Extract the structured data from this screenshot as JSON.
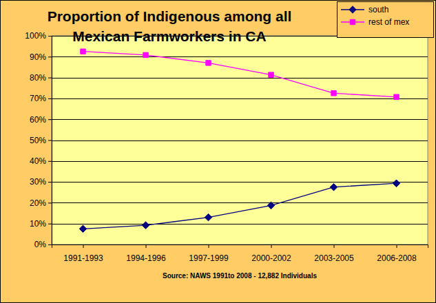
{
  "chart_data": {
    "type": "line",
    "title": "Proportion of Indigenous among all Mexican Farmworkers in CA",
    "xlabel": "Source: NAWS 1991to 2008 - 12,882 Individuals",
    "categories": [
      "1991-1993",
      "1994-1996",
      "1997-1999",
      "2000-2002",
      "2003-2005",
      "2006-2008"
    ],
    "series": [
      {
        "name": "south",
        "color": "#000080",
        "marker": "diamond",
        "values": [
          7.5,
          9.2,
          13,
          18.7,
          27.5,
          29.3
        ]
      },
      {
        "name": "rest of mex",
        "color": "#ff00ff",
        "marker": "square",
        "values": [
          92.5,
          90.8,
          87,
          81.3,
          72.5,
          70.7
        ]
      }
    ],
    "ylim": [
      0,
      100
    ],
    "yticks": [
      {
        "value": 0,
        "label": "0%"
      },
      {
        "value": 10,
        "label": "10%"
      },
      {
        "value": 20,
        "label": "20%"
      },
      {
        "value": 30,
        "label": "30%"
      },
      {
        "value": 40,
        "label": "40%"
      },
      {
        "value": 50,
        "label": "50%"
      },
      {
        "value": 60,
        "label": "60%"
      },
      {
        "value": 70,
        "label": "70%"
      },
      {
        "value": 80,
        "label": "80%"
      },
      {
        "value": 90,
        "label": "90%"
      },
      {
        "value": 100,
        "label": "100%"
      }
    ],
    "grid": true,
    "legend": "top-right"
  }
}
